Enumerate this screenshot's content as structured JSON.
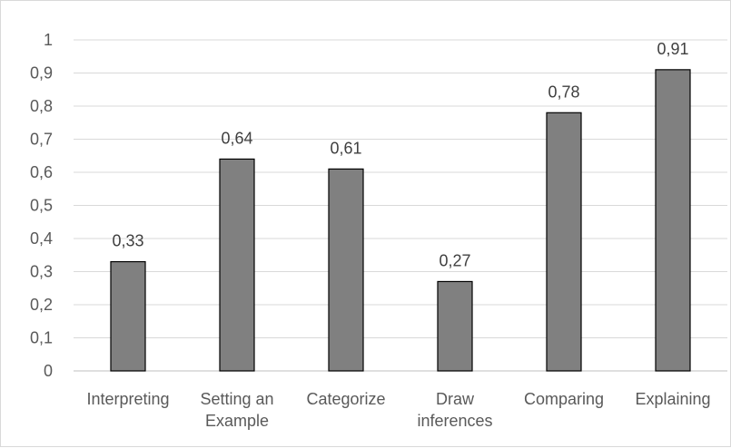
{
  "chart_data": {
    "type": "bar",
    "title": "",
    "xlabel": "",
    "ylabel": "",
    "categories": [
      [
        "Interpreting"
      ],
      [
        "Setting an",
        "Example"
      ],
      [
        "Categorize"
      ],
      [
        "Draw",
        "inferences"
      ],
      [
        "Comparing"
      ],
      [
        "Explaining"
      ]
    ],
    "values": [
      0.33,
      0.64,
      0.61,
      0.27,
      0.78,
      0.91
    ],
    "data_labels": [
      "0,33",
      "0,64",
      "0,61",
      "0,27",
      "0,78",
      "0,91"
    ],
    "ylim": [
      0,
      1
    ],
    "yticks": [
      0,
      0.1,
      0.2,
      0.3,
      0.4,
      0.5,
      0.6,
      0.7,
      0.8,
      0.9,
      1
    ],
    "ytick_labels": [
      "0",
      "0,1",
      "0,2",
      "0,3",
      "0,4",
      "0,5",
      "0,6",
      "0,7",
      "0,8",
      "0,9",
      "1"
    ],
    "grid": true,
    "legend": "none",
    "colors": {
      "bar_fill": "#808080",
      "bar_stroke": "#000000",
      "grid": "#d9d9d9",
      "axis": "#bfbfbf",
      "tick_text": "#595959",
      "label_text": "#404040"
    }
  }
}
